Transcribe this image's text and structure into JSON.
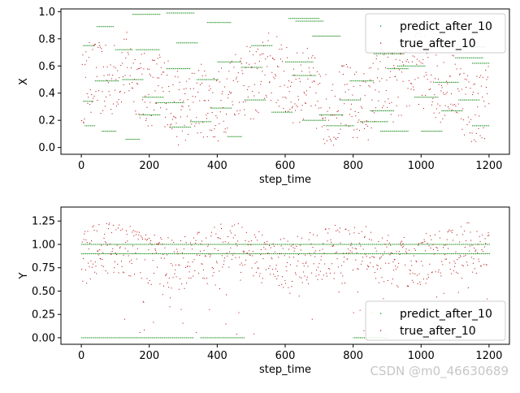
{
  "watermark": "CSDN @m0_46630689",
  "chart_data": [
    {
      "type": "scatter",
      "xlabel": "step_time",
      "ylabel": "X",
      "xlim": [
        -60,
        1260
      ],
      "ylim": [
        -0.05,
        1.02
      ],
      "xticks": [
        0,
        200,
        400,
        600,
        800,
        1000,
        1200
      ],
      "yticks": [
        0.0,
        0.2,
        0.4,
        0.6,
        0.8,
        1.0
      ],
      "legend": {
        "placement": "top-right",
        "entries": [
          "predict_after_10",
          "true_after_10"
        ]
      },
      "series": [
        {
          "name": "predict_after_10",
          "color": "#008000",
          "marker": "dot",
          "description": "piecewise-constant horizontal dotted segments, x 0-1200, y 0.0-1.0",
          "segments": [
            {
              "x": [
                5,
                40
              ],
              "y": 0.75
            },
            {
              "x": 5,
              "y2": 0.34,
              "x2": 35
            },
            {
              "x": [
                10,
                40
              ],
              "y": 0.16
            },
            {
              "x": [
                45,
                95
              ],
              "y": 0.89
            },
            {
              "x": [
                40,
                110
              ],
              "y": 0.49
            },
            {
              "x": [
                60,
                100
              ],
              "y": 0.12
            },
            {
              "x": [
                100,
                150
              ],
              "y": 0.72
            },
            {
              "x": [
                120,
                180
              ],
              "y": 0.5
            },
            {
              "x": [
                130,
                170
              ],
              "y": 0.06
            },
            {
              "x": [
                150,
                230
              ],
              "y": 0.98
            },
            {
              "x": [
                160,
                230
              ],
              "y": 0.72
            },
            {
              "x": [
                180,
                240
              ],
              "y": 0.37
            },
            {
              "x": [
                170,
                230
              ],
              "y": 0.24
            },
            {
              "x": [
                220,
                300
              ],
              "y": 0.33
            },
            {
              "x": [
                250,
                330
              ],
              "y": 0.99
            },
            {
              "x": [
                250,
                320
              ],
              "y": 0.58
            },
            {
              "x": [
                260,
                320
              ],
              "y": 0.15
            },
            {
              "x": [
                280,
                340
              ],
              "y": 0.77
            },
            {
              "x": [
                320,
                380
              ],
              "y": 0.19
            },
            {
              "x": [
                340,
                400
              ],
              "y": 0.5
            },
            {
              "x": [
                370,
                440
              ],
              "y": 0.92
            },
            {
              "x": [
                380,
                440
              ],
              "y": 0.29
            },
            {
              "x": [
                400,
                470
              ],
              "y": 0.63
            },
            {
              "x": [
                430,
                470
              ],
              "y": 0.08
            },
            {
              "x": [
                470,
                530
              ],
              "y": 0.59
            },
            {
              "x": [
                480,
                540
              ],
              "y": 0.35
            },
            {
              "x": [
                500,
                560
              ],
              "y": 0.75
            },
            {
              "x": [
                560,
                620
              ],
              "y": 0.26
            },
            {
              "x": [
                610,
                700
              ],
              "y": 0.95
            },
            {
              "x": [
                630,
                710
              ],
              "y": 0.93
            },
            {
              "x": [
                600,
                680
              ],
              "y": 0.63
            },
            {
              "x": [
                620,
                690
              ],
              "y": 0.53
            },
            {
              "x": [
                650,
                720
              ],
              "y": 0.2
            },
            {
              "x": [
                680,
                760
              ],
              "y": 0.82
            },
            {
              "x": [
                700,
                770
              ],
              "y": 0.24
            },
            {
              "x": [
                720,
                800
              ],
              "y": 0.16
            },
            {
              "x": [
                760,
                820
              ],
              "y": 0.35
            },
            {
              "x": [
                790,
                860
              ],
              "y": 0.49
            },
            {
              "x": [
                820,
                900
              ],
              "y": 0.19
            },
            {
              "x": [
                850,
                920
              ],
              "y": 0.27
            },
            {
              "x": [
                860,
                950
              ],
              "y": 0.69
            },
            {
              "x": [
                880,
                960
              ],
              "y": 0.12
            },
            {
              "x": [
                900,
                960
              ],
              "y": 0.58
            },
            {
              "x": [
                930,
                1010
              ],
              "y": 0.6
            },
            {
              "x": [
                980,
                1050
              ],
              "y": 0.37
            },
            {
              "x": [
                1000,
                1060
              ],
              "y": 0.12
            },
            {
              "x": [
                1040,
                1110
              ],
              "y": 0.48
            },
            {
              "x": [
                1060,
                1120
              ],
              "y": 0.27
            },
            {
              "x": [
                1100,
                1180
              ],
              "y": 0.66
            },
            {
              "x": [
                1110,
                1170
              ],
              "y": 0.35
            },
            {
              "x": [
                1150,
                1200
              ],
              "y": 0.16
            },
            {
              "x": [
                1150,
                1200
              ],
              "y": 0.62
            },
            {
              "x": [
                1140,
                1190
              ],
              "y": 0.74
            }
          ]
        },
        {
          "name": "true_after_10",
          "color": "#b30000",
          "marker": "dot",
          "description": "noisy scatter of single points, x 0-1200, y mostly 0.0-0.85"
        }
      ]
    },
    {
      "type": "scatter",
      "xlabel": "step_time",
      "ylabel": "Y",
      "xlim": [
        -60,
        1260
      ],
      "ylim": [
        -0.07,
        1.4
      ],
      "xticks": [
        0,
        200,
        400,
        600,
        800,
        1000,
        1200
      ],
      "yticks": [
        0.0,
        0.25,
        0.5,
        0.75,
        1.0,
        1.25
      ],
      "legend": {
        "placement": "bottom-right",
        "entries": [
          "predict_after_10",
          "true_after_10"
        ]
      },
      "series": [
        {
          "name": "predict_after_10",
          "color": "#008000",
          "marker": "dot",
          "segments": [
            {
              "x": [
                0,
                1200
              ],
              "y": 1.0
            },
            {
              "x": [
                0,
                330
              ],
              "y": 0.0
            },
            {
              "x": [
                0,
                1200
              ],
              "y": 0.9
            },
            {
              "x": [
                350,
                480
              ],
              "y": 0.0
            },
            {
              "x": [
                800,
                900
              ],
              "y": 0.0
            }
          ]
        },
        {
          "name": "true_after_10",
          "color": "#b30000",
          "marker": "dot",
          "description": "noisy scatter of single points around 0.6-1.2 with sparse drops toward 0"
        }
      ]
    }
  ]
}
